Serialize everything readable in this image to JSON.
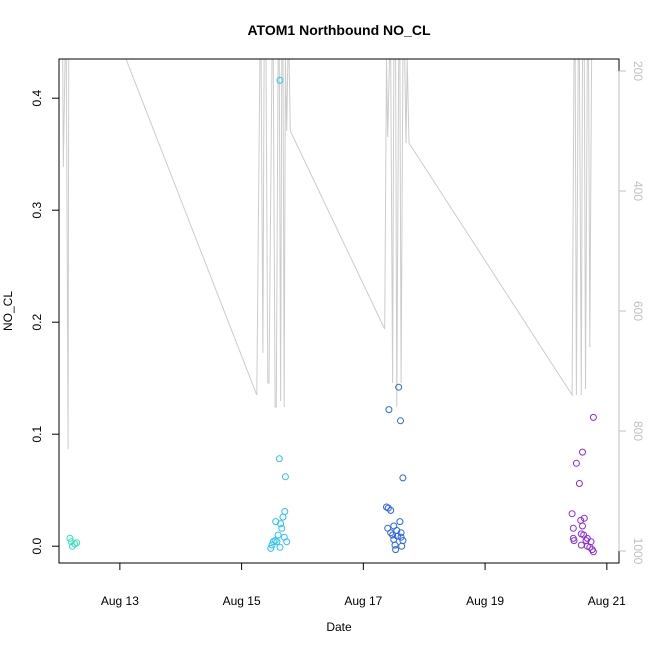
{
  "chart_data": {
    "type": "scatter",
    "title": "ATOM1 Northbound NO_CL",
    "xlabel": "Date",
    "ylabel": "NO_CL",
    "x_ticks": [
      "Aug 13",
      "Aug 15",
      "Aug 17",
      "Aug 19",
      "Aug 21"
    ],
    "x_tick_days": [
      13,
      15,
      17,
      19,
      21
    ],
    "xlim": [
      12.0,
      21.2
    ],
    "y_ticks": [
      "0.0",
      "0.1",
      "0.2",
      "0.3",
      "0.4"
    ],
    "y_tick_values": [
      0.0,
      0.1,
      0.2,
      0.3,
      0.4
    ],
    "ylim": [
      -0.015,
      0.435
    ],
    "y2_ticks": [
      "200",
      "400",
      "600",
      "800",
      "1000"
    ],
    "y2_tick_values": [
      200,
      400,
      600,
      800,
      1000
    ],
    "y2lim": [
      1020,
      180
    ],
    "grid": false,
    "points": [
      {
        "x": 12.18,
        "y": 0.007,
        "color": "#33e0b8"
      },
      {
        "x": 12.2,
        "y": 0.004,
        "color": "#33e0b8"
      },
      {
        "x": 12.22,
        "y": 0.0,
        "color": "#33e0b8"
      },
      {
        "x": 12.26,
        "y": 0.002,
        "color": "#33e0b8"
      },
      {
        "x": 12.29,
        "y": 0.003,
        "color": "#33e0b8"
      },
      {
        "x": 15.63,
        "y": 0.416,
        "color": "#27c2f0"
      },
      {
        "x": 15.62,
        "y": 0.078,
        "color": "#27c2f0"
      },
      {
        "x": 15.72,
        "y": 0.062,
        "color": "#27c2f0"
      },
      {
        "x": 15.71,
        "y": 0.031,
        "color": "#27c2f0"
      },
      {
        "x": 15.68,
        "y": 0.026,
        "color": "#27c2f0"
      },
      {
        "x": 15.56,
        "y": 0.022,
        "color": "#27c2f0"
      },
      {
        "x": 15.64,
        "y": 0.02,
        "color": "#27c2f0"
      },
      {
        "x": 15.66,
        "y": 0.016,
        "color": "#27c2f0"
      },
      {
        "x": 15.6,
        "y": 0.01,
        "color": "#27c2f0"
      },
      {
        "x": 15.55,
        "y": 0.005,
        "color": "#27c2f0"
      },
      {
        "x": 15.58,
        "y": 0.004,
        "color": "#27c2f0"
      },
      {
        "x": 15.52,
        "y": 0.004,
        "color": "#27c2f0"
      },
      {
        "x": 15.7,
        "y": 0.008,
        "color": "#27c2f0"
      },
      {
        "x": 15.74,
        "y": 0.004,
        "color": "#27c2f0"
      },
      {
        "x": 15.5,
        "y": 0.001,
        "color": "#27c2f0"
      },
      {
        "x": 15.48,
        "y": -0.002,
        "color": "#27c2f0"
      },
      {
        "x": 15.63,
        "y": -0.001,
        "color": "#27c2f0"
      },
      {
        "x": 17.58,
        "y": 0.142,
        "color": "#2a64f0"
      },
      {
        "x": 17.42,
        "y": 0.122,
        "color": "#2a64f0"
      },
      {
        "x": 17.61,
        "y": 0.112,
        "color": "#2a64f0"
      },
      {
        "x": 17.65,
        "y": 0.061,
        "color": "#2a64f0"
      },
      {
        "x": 17.38,
        "y": 0.035,
        "color": "#2a64f0"
      },
      {
        "x": 17.41,
        "y": 0.034,
        "color": "#2a64f0"
      },
      {
        "x": 17.45,
        "y": 0.032,
        "color": "#2a64f0"
      },
      {
        "x": 17.6,
        "y": 0.022,
        "color": "#2a64f0"
      },
      {
        "x": 17.5,
        "y": 0.018,
        "color": "#2a64f0"
      },
      {
        "x": 17.4,
        "y": 0.016,
        "color": "#2a64f0"
      },
      {
        "x": 17.55,
        "y": 0.014,
        "color": "#2a64f0"
      },
      {
        "x": 17.45,
        "y": 0.012,
        "color": "#2a64f0"
      },
      {
        "x": 17.62,
        "y": 0.012,
        "color": "#2a64f0"
      },
      {
        "x": 17.48,
        "y": 0.01,
        "color": "#2a64f0"
      },
      {
        "x": 17.56,
        "y": 0.009,
        "color": "#2a64f0"
      },
      {
        "x": 17.62,
        "y": 0.008,
        "color": "#2a64f0"
      },
      {
        "x": 17.5,
        "y": 0.006,
        "color": "#2a64f0"
      },
      {
        "x": 17.65,
        "y": 0.005,
        "color": "#2a64f0"
      },
      {
        "x": 17.52,
        "y": 0.001,
        "color": "#2a64f0"
      },
      {
        "x": 17.63,
        "y": 0.0,
        "color": "#2a64f0"
      },
      {
        "x": 17.53,
        "y": -0.003,
        "color": "#2a64f0"
      },
      {
        "x": 20.78,
        "y": 0.115,
        "color": "#8a2be2"
      },
      {
        "x": 20.6,
        "y": 0.084,
        "color": "#8a2be2"
      },
      {
        "x": 20.5,
        "y": 0.074,
        "color": "#8a2be2"
      },
      {
        "x": 20.55,
        "y": 0.056,
        "color": "#8a2be2"
      },
      {
        "x": 20.43,
        "y": 0.029,
        "color": "#8a2be2"
      },
      {
        "x": 20.63,
        "y": 0.025,
        "color": "#8a2be2"
      },
      {
        "x": 20.57,
        "y": 0.023,
        "color": "#8a2be2"
      },
      {
        "x": 20.6,
        "y": 0.018,
        "color": "#8a2be2"
      },
      {
        "x": 20.45,
        "y": 0.016,
        "color": "#8a2be2"
      },
      {
        "x": 20.58,
        "y": 0.011,
        "color": "#8a2be2"
      },
      {
        "x": 20.62,
        "y": 0.01,
        "color": "#8a2be2"
      },
      {
        "x": 20.68,
        "y": 0.007,
        "color": "#8a2be2"
      },
      {
        "x": 20.45,
        "y": 0.007,
        "color": "#8a2be2"
      },
      {
        "x": 20.46,
        "y": 0.005,
        "color": "#8a2be2"
      },
      {
        "x": 20.66,
        "y": 0.005,
        "color": "#8a2be2"
      },
      {
        "x": 20.74,
        "y": 0.004,
        "color": "#8a2be2"
      },
      {
        "x": 20.58,
        "y": 0.001,
        "color": "#8a2be2"
      },
      {
        "x": 20.68,
        "y": 0.0,
        "color": "#8a2be2"
      },
      {
        "x": 20.72,
        "y": -0.001,
        "color": "#8a2be2"
      },
      {
        "x": 20.76,
        "y": -0.003,
        "color": "#8a2be2"
      },
      {
        "x": 20.78,
        "y": -0.005,
        "color": "#8a2be2"
      }
    ],
    "line_series": {
      "color": "#cccccc",
      "axis": "right",
      "x": [
        12.0,
        12.06,
        12.07,
        12.1,
        12.12,
        12.15,
        12.16,
        12.2,
        12.25,
        12.35,
        13.1,
        15.25,
        15.3,
        15.32,
        15.35,
        15.37,
        15.4,
        15.43,
        15.45,
        15.5,
        15.52,
        15.55,
        15.57,
        15.6,
        15.62,
        15.64,
        15.66,
        15.68,
        15.7,
        15.72,
        15.74,
        15.76,
        15.78,
        15.8,
        17.35,
        17.38,
        17.4,
        17.43,
        17.45,
        17.48,
        17.5,
        17.53,
        17.55,
        17.58,
        17.6,
        17.62,
        17.65,
        17.68,
        17.7,
        17.72,
        17.75,
        20.43,
        20.46,
        20.48,
        20.5,
        20.53,
        20.55,
        20.58,
        20.6,
        20.63,
        20.65,
        20.68,
        20.7,
        20.72,
        20.75,
        20.78
      ],
      "y": [
        180,
        180,
        360,
        180,
        180,
        830,
        180,
        180,
        180,
        180,
        180,
        740,
        180,
        180,
        670,
        180,
        180,
        720,
        720,
        180,
        180,
        760,
        760,
        180,
        180,
        750,
        180,
        180,
        760,
        180,
        300,
        180,
        180,
        300,
        630,
        180,
        310,
        180,
        180,
        720,
        180,
        180,
        760,
        180,
        180,
        720,
        180,
        180,
        320,
        180,
        320,
        740,
        180,
        180,
        740,
        180,
        180,
        740,
        180,
        180,
        730,
        180,
        180,
        660,
        180,
        180
      ]
    }
  }
}
